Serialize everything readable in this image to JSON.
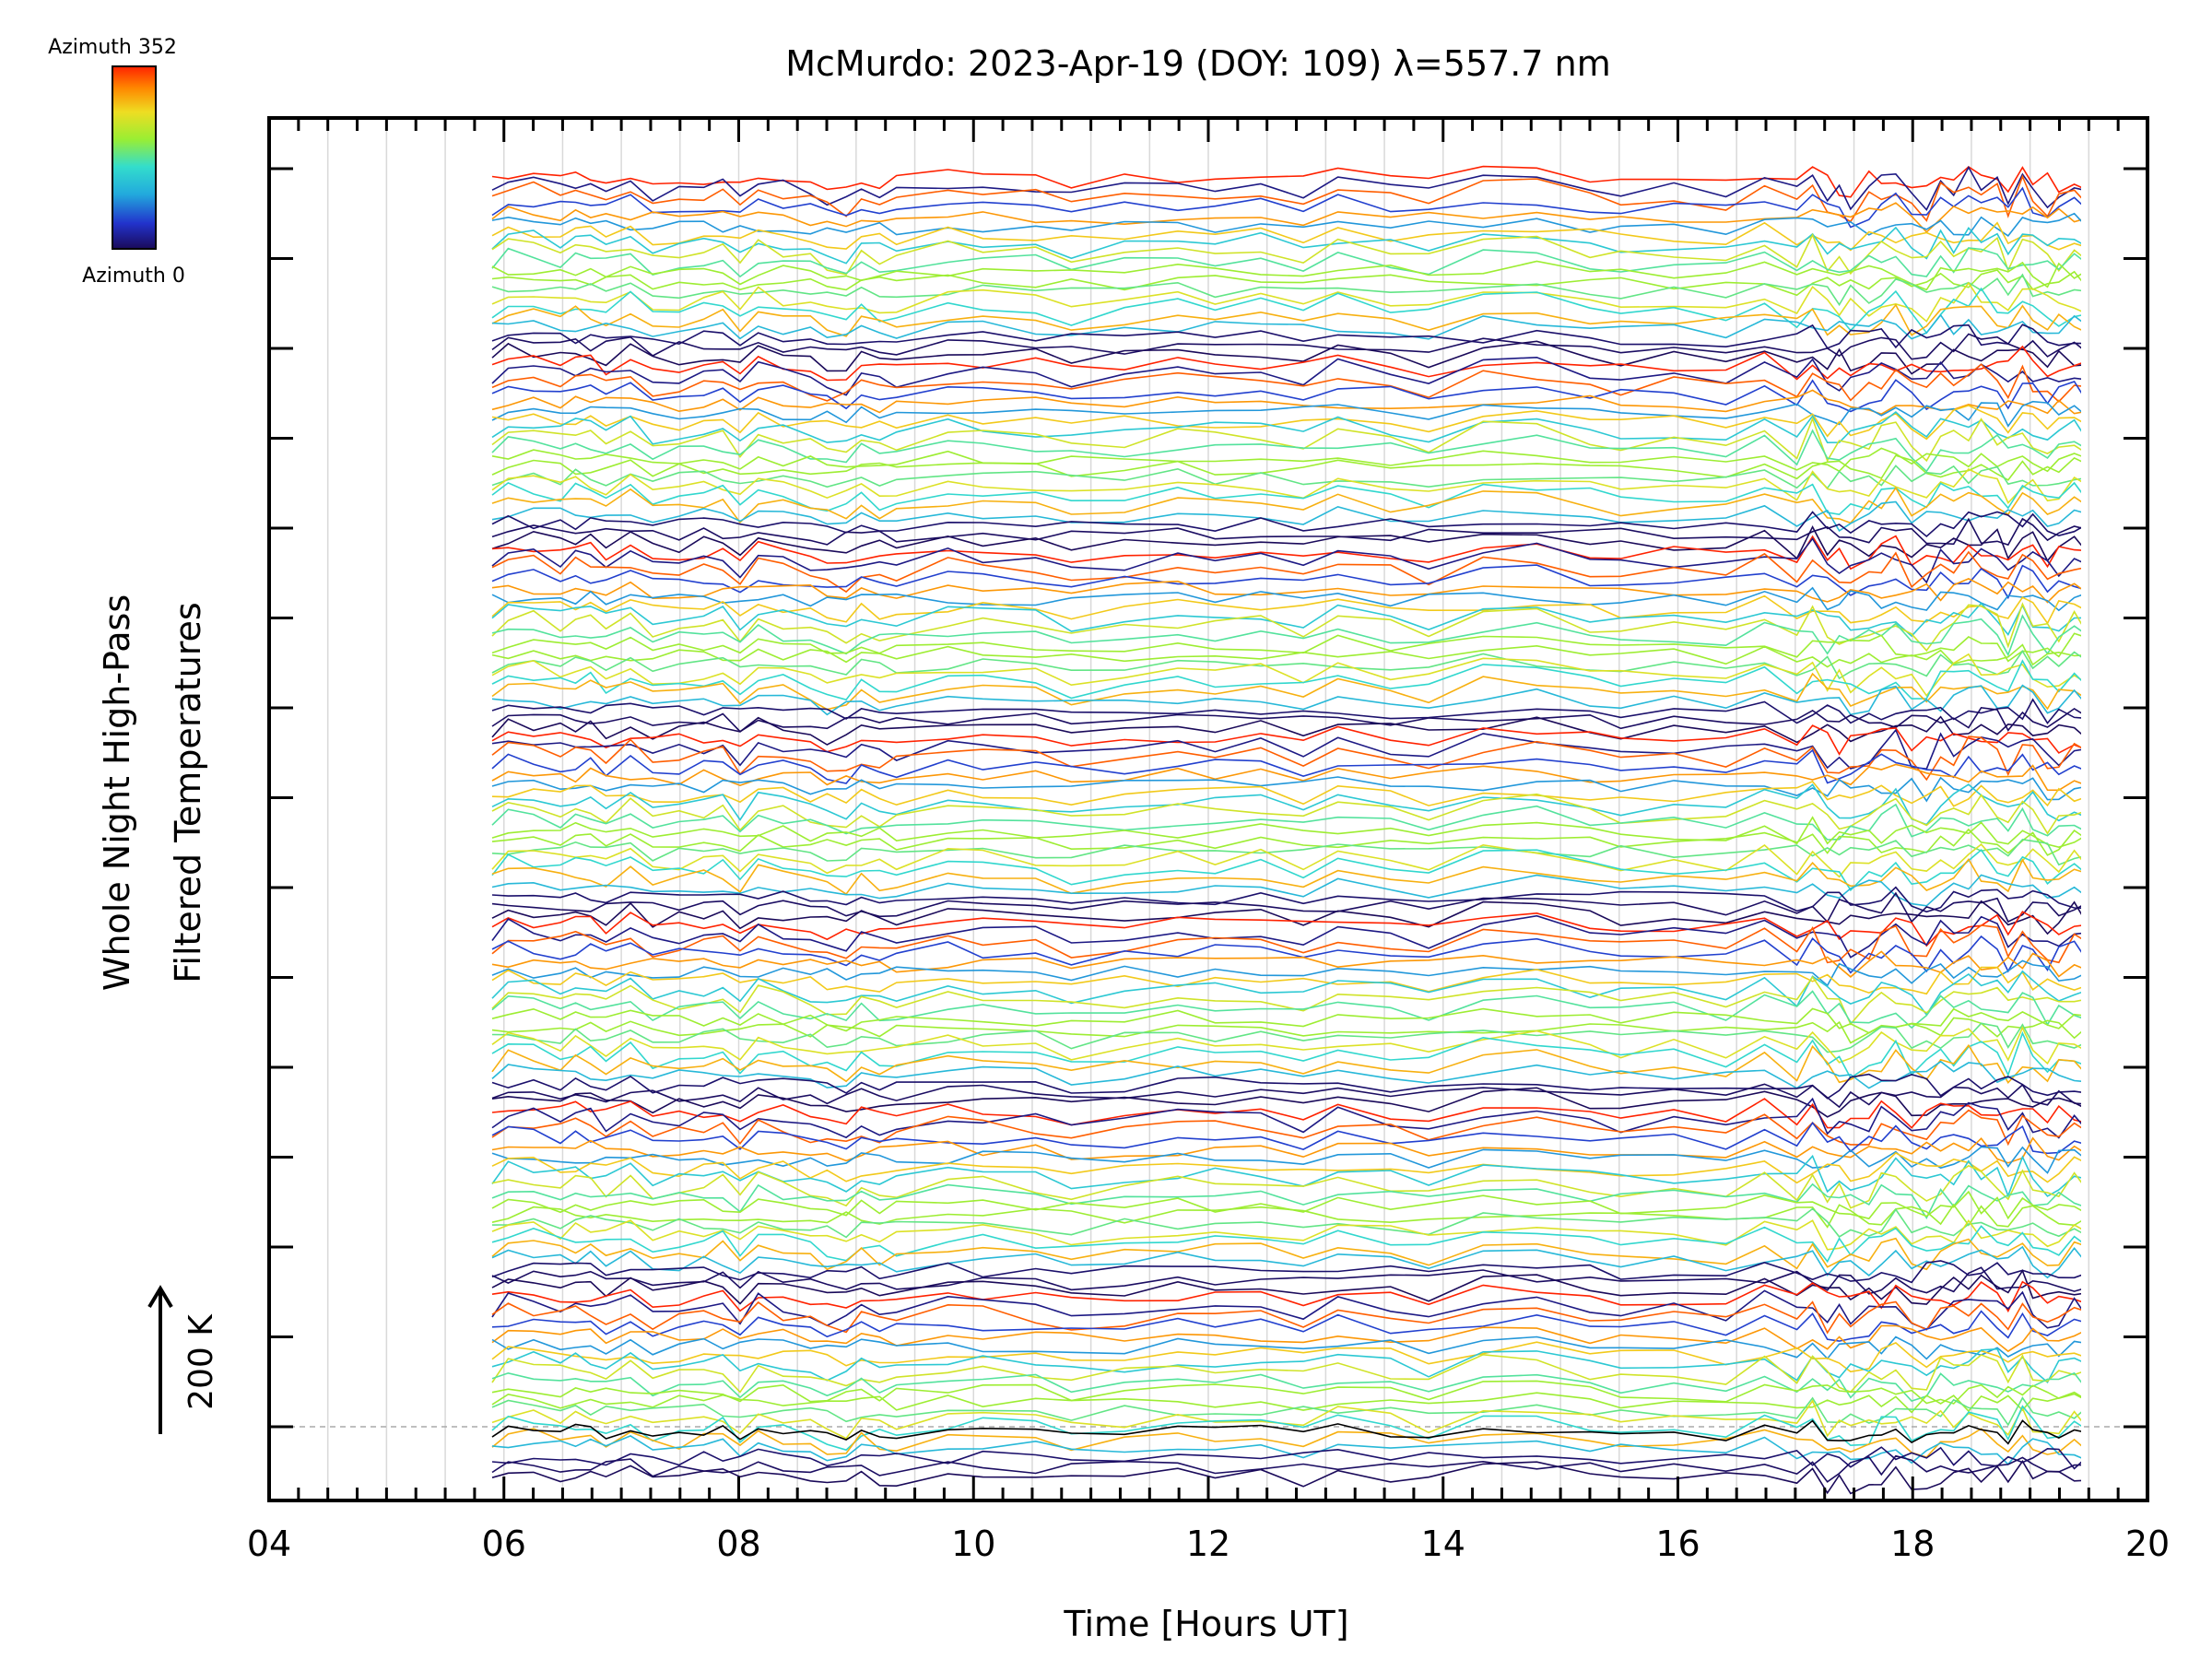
{
  "chart_data": {
    "type": "line",
    "title": "McMurdo: 2023-Apr-19 (DOY: 109) λ=557.7 nm",
    "xlabel": "Time [Hours UT]",
    "ylabel_line1": "Whole Night High-Pass",
    "ylabel_line2": "Filtered Temperatures",
    "xlim": [
      4,
      20
    ],
    "x_ticks": [
      "04",
      "06",
      "08",
      "10",
      "12",
      "14",
      "16",
      "18",
      "20"
    ],
    "x_tick_values": [
      4,
      6,
      8,
      10,
      12,
      14,
      16,
      18,
      20
    ],
    "data_start_hour": 5.9,
    "data_end_hour": 20.0,
    "scale_label": "200 K",
    "colorbar": {
      "top_label": "Azimuth  352",
      "bottom_label": "Azimuth  0",
      "min": 0,
      "max": 352
    },
    "colorbar_colors": [
      "#1a0a5a",
      "#2233cc",
      "#22aadd",
      "#33ddcc",
      "#99ee33",
      "#eedd22",
      "#ff8800",
      "#ff2200"
    ],
    "series_description": "Stacked, vertically offset high-pass filtered temperature traces coloured by look azimuth (0–352 deg), recurring in ~7 banded groups",
    "n_groups": 7,
    "traces_per_group": 20
  }
}
